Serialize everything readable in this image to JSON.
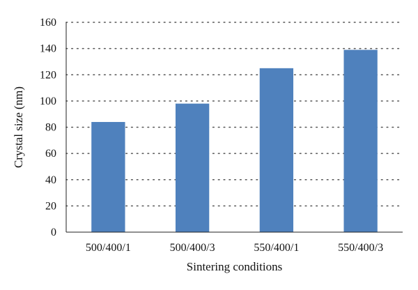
{
  "colors": {
    "bar": "#4f81bd",
    "gridline": "#555555",
    "axis": "#222222"
  },
  "chart_data": {
    "type": "bar",
    "categories": [
      "500/400/1",
      "500/400/3",
      "550/400/1",
      "550/400/3"
    ],
    "series": [
      {
        "values": [
          84,
          98,
          125,
          139
        ]
      }
    ],
    "xlabel": "Sintering conditions",
    "ylabel": "Crystal size (nm)",
    "ylim": [
      0,
      160
    ],
    "yticks": [
      0,
      20,
      40,
      60,
      80,
      100,
      120,
      140,
      160
    ],
    "grid": true,
    "legend": "none"
  }
}
